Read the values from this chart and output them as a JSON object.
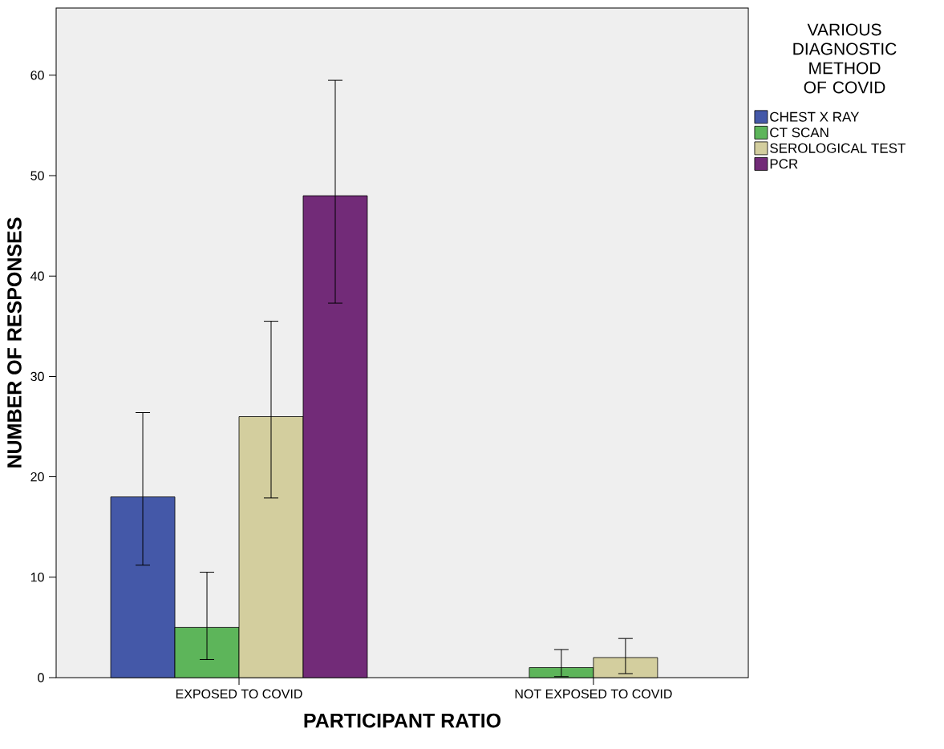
{
  "chart_data": {
    "type": "bar",
    "xlabel": "PARTICIPANT RATIO",
    "ylabel": "NUMBER OF RESPONSES",
    "legend_title": "VARIOUS DIAGNOSTIC METHOD OF COVID",
    "categories": [
      "EXPOSED TO COVID",
      "NOT EXPOSED TO COVID"
    ],
    "series": [
      {
        "name": "CHEST X RAY",
        "color": "#4458a8",
        "values": [
          18,
          null
        ],
        "errors": [
          [
            11.2,
            26.4
          ],
          null
        ]
      },
      {
        "name": "CT SCAN",
        "color": "#5db55a",
        "values": [
          5,
          1
        ],
        "errors": [
          [
            1.8,
            10.5
          ],
          [
            0.1,
            2.8
          ]
        ]
      },
      {
        "name": "SEROLOGICAL TEST",
        "color": "#d3ce9e",
        "values": [
          26,
          2
        ],
        "errors": [
          [
            17.9,
            35.5
          ],
          [
            0.4,
            3.9
          ]
        ]
      },
      {
        "name": "PCR",
        "color": "#722b78",
        "values": [
          48,
          null
        ],
        "errors": [
          [
            37.3,
            59.5
          ],
          null
        ]
      }
    ],
    "ylim": [
      0,
      66.7
    ],
    "yticks": [
      0,
      10,
      20,
      30,
      40,
      50,
      60
    ],
    "legend": "right",
    "grid": false
  }
}
